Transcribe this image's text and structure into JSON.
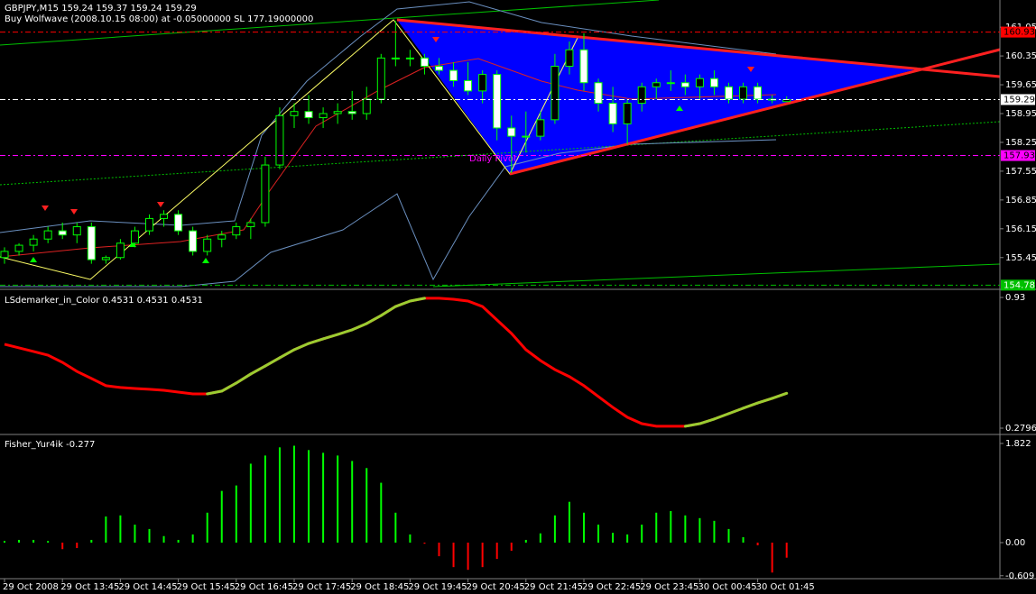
{
  "header": {
    "symbol_line": "GBPJPY,M15  159.24 159.37 159.24 159.29",
    "ea_line": "Buy Wolfwave (2008.10.15 08:00) at -0.05000000 SL 177.19000000",
    "pivot_label": "Daily Pivot"
  },
  "chart_data": [
    {
      "type": "candlestick",
      "open": [
        155.45,
        155.6,
        155.75,
        155.9,
        156.1,
        156.0,
        156.2,
        155.4,
        155.45,
        155.8,
        156.1,
        156.4,
        156.5,
        156.1,
        155.6,
        155.9,
        156.0,
        156.2,
        156.3,
        157.7,
        158.9,
        159.0,
        158.85,
        158.95,
        159.0,
        158.95,
        159.3,
        160.3,
        160.3,
        160.3,
        160.1,
        160.0,
        159.75,
        159.5,
        159.9,
        158.6,
        158.4,
        158.4,
        158.8,
        160.1,
        160.5,
        159.7,
        159.2,
        158.7,
        159.2,
        159.6,
        159.7,
        159.7,
        159.6,
        159.8,
        159.6,
        159.3,
        159.6,
        159.3,
        159.24
      ],
      "high": [
        155.7,
        155.8,
        156.0,
        156.2,
        156.3,
        156.3,
        156.3,
        155.5,
        155.9,
        156.2,
        156.5,
        156.6,
        156.6,
        156.2,
        156.0,
        156.1,
        156.3,
        156.4,
        157.9,
        159.1,
        159.2,
        159.4,
        159.1,
        159.2,
        159.5,
        159.6,
        160.4,
        161.2,
        160.5,
        160.4,
        160.3,
        160.2,
        160.2,
        160.0,
        160.0,
        158.9,
        159.0,
        159.0,
        160.4,
        160.7,
        160.9,
        159.8,
        159.6,
        159.3,
        159.7,
        159.8,
        160.0,
        159.9,
        159.9,
        160.0,
        159.7,
        159.7,
        159.7,
        159.4,
        159.37
      ],
      "low": [
        155.3,
        155.5,
        155.6,
        155.8,
        155.9,
        155.8,
        155.3,
        155.3,
        155.4,
        155.7,
        156.0,
        156.2,
        156.0,
        155.5,
        155.5,
        155.7,
        155.9,
        155.9,
        156.2,
        157.6,
        158.6,
        158.7,
        158.6,
        158.7,
        158.8,
        158.8,
        159.2,
        160.1,
        160.1,
        159.9,
        159.9,
        159.6,
        159.4,
        159.2,
        158.3,
        157.5,
        158.0,
        158.3,
        158.7,
        159.9,
        159.5,
        159.0,
        158.5,
        158.2,
        159.0,
        159.3,
        159.5,
        159.4,
        159.3,
        159.4,
        159.2,
        159.2,
        159.2,
        159.2,
        159.24
      ],
      "close": [
        155.6,
        155.75,
        155.9,
        156.1,
        156.0,
        156.2,
        155.4,
        155.45,
        155.8,
        156.1,
        156.4,
        156.5,
        156.1,
        155.6,
        155.9,
        156.0,
        156.2,
        156.3,
        157.7,
        158.9,
        159.0,
        158.85,
        158.95,
        159.0,
        158.95,
        159.3,
        160.3,
        160.3,
        160.3,
        160.1,
        160.0,
        159.75,
        159.5,
        159.9,
        158.6,
        158.4,
        158.4,
        158.8,
        160.1,
        160.5,
        159.7,
        159.2,
        158.7,
        159.2,
        159.6,
        159.7,
        159.7,
        159.6,
        159.8,
        159.6,
        159.3,
        159.6,
        159.3,
        159.29,
        159.29
      ],
      "up_color": "#000000",
      "down_color": "#ffffff",
      "edge_color": "#00ff00",
      "ylim": [
        154.7,
        161.71
      ],
      "yticks": [
        161.05,
        160.35,
        159.65,
        158.95,
        158.25,
        157.55,
        156.85,
        156.15,
        155.45
      ],
      "levels": [
        {
          "value": 160.93,
          "color": "#ff0000",
          "text_color": "#000000"
        },
        {
          "value": 159.29,
          "color": "#ffffff",
          "text_color": "#000000"
        },
        {
          "value": 157.93,
          "color": "#ff00ff",
          "text_color": "#000000"
        },
        {
          "value": 154.78,
          "color": "#00c000",
          "text_color": "#ffffff"
        }
      ]
    },
    {
      "type": "line",
      "title": "LSdemarker_in_Color 0.4531 0.4531 0.4531",
      "values": [
        0.697,
        0.679,
        0.661,
        0.643,
        0.607,
        0.562,
        0.527,
        0.491,
        0.482,
        0.477,
        0.473,
        0.468,
        0.459,
        0.45,
        0.45,
        0.464,
        0.504,
        0.549,
        0.589,
        0.63,
        0.67,
        0.701,
        0.724,
        0.746,
        0.769,
        0.8,
        0.84,
        0.885,
        0.912,
        0.926,
        0.926,
        0.921,
        0.912,
        0.885,
        0.818,
        0.751,
        0.67,
        0.616,
        0.571,
        0.536,
        0.491,
        0.437,
        0.383,
        0.334,
        0.302,
        0.289,
        0.289,
        0.289,
        0.302,
        0.325,
        0.352,
        0.379,
        0.405,
        0.428,
        0.4531
      ],
      "up_color": "#9acd32",
      "down_color": "#ff0000",
      "ylim": [
        0.2572,
        0.9614
      ],
      "yticks": [
        0.93,
        0.2796
      ]
    },
    {
      "type": "bar",
      "title": "Fisher_Yur4ik -0.277",
      "values": [
        0.03,
        0.05,
        0.05,
        0.03,
        -0.12,
        -0.1,
        0.05,
        0.48,
        0.5,
        0.33,
        0.25,
        0.12,
        0.05,
        0.15,
        0.55,
        0.95,
        1.05,
        1.45,
        1.6,
        1.75,
        1.78,
        1.7,
        1.65,
        1.6,
        1.5,
        1.37,
        1.1,
        0.55,
        0.15,
        -0.02,
        -0.25,
        -0.45,
        -0.5,
        -0.45,
        -0.3,
        -0.15,
        0.05,
        0.17,
        0.5,
        0.75,
        0.55,
        0.33,
        0.18,
        0.15,
        0.33,
        0.55,
        0.58,
        0.5,
        0.45,
        0.4,
        0.25,
        0.1,
        -0.05,
        -0.55,
        -0.277
      ],
      "up_color": "#00ff00",
      "down_color": "#ff0000",
      "ylim": [
        -0.646,
        1.954
      ],
      "yticks": [
        1.822,
        {
          "value": 0,
          "label": "0.00"
        },
        -0.609
      ],
      "x_labels": [
        "29 Oct 2008",
        "29 Oct 13:45",
        "29 Oct 14:45",
        "29 Oct 15:45",
        "29 Oct 16:45",
        "29 Oct 17:45",
        "29 Oct 18:45",
        "29 Oct 19:45",
        "29 Oct 20:45",
        "29 Oct 21:45",
        "29 Oct 22:45",
        "29 Oct 23:45",
        "30 Oct 00:45",
        "30 Oct 01:45"
      ]
    }
  ]
}
